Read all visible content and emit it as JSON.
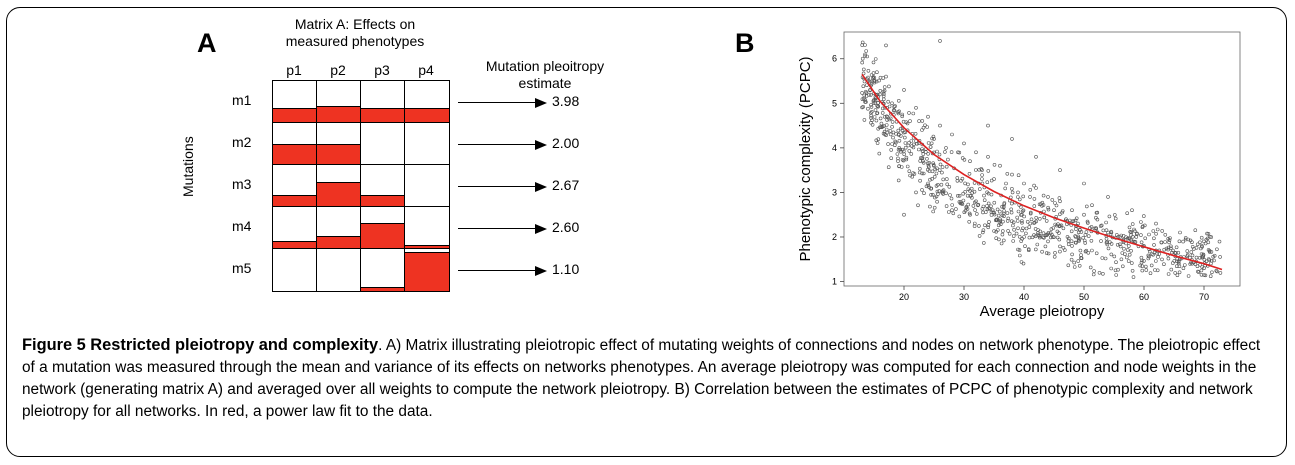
{
  "panel_a": {
    "letter": "A",
    "matrix_title_line1": "Matrix A: Effects on",
    "matrix_title_line2": "measured phenotypes",
    "estimate_title_line1": "Mutation pleoitropy",
    "estimate_title_line2": "estimate",
    "y_axis_label": "Mutations",
    "columns": [
      "p1",
      "p2",
      "p3",
      "p4"
    ],
    "rows": [
      {
        "label": "m1",
        "estimate": "3.98",
        "fills": [
          0.35,
          0.4,
          0.35,
          0.35
        ]
      },
      {
        "label": "m2",
        "estimate": "2.00",
        "fills": [
          0.5,
          0.5,
          0.0,
          0.0
        ]
      },
      {
        "label": "m3",
        "estimate": "2.67",
        "fills": [
          0.28,
          0.58,
          0.28,
          0.0
        ]
      },
      {
        "label": "m4",
        "estimate": "2.60",
        "fills": [
          0.18,
          0.3,
          0.62,
          0.08
        ]
      },
      {
        "label": "m5",
        "estimate": "1.10",
        "fills": [
          0.0,
          0.0,
          0.08,
          0.93
        ]
      }
    ],
    "fill_color": "#ee3322"
  },
  "panel_b": {
    "letter": "B"
  },
  "chart_data": {
    "type": "scatter",
    "title": "",
    "xlabel": "Average pleiotropy",
    "ylabel": "Phenotypic complexity (PCPC)",
    "xlim": [
      10,
      76
    ],
    "ylim": [
      0.9,
      6.6
    ],
    "x_ticks": [
      20,
      30,
      40,
      50,
      60,
      70
    ],
    "y_ticks": [
      1,
      2,
      3,
      4,
      5,
      6
    ],
    "grid": false,
    "series": [
      {
        "type": "scatter",
        "marker": "open-circle",
        "color": "#555555",
        "points": [
          [
            15,
            5.5
          ],
          [
            16,
            5.2
          ],
          [
            17,
            5.6
          ],
          [
            18,
            5.0
          ],
          [
            19,
            4.8
          ],
          [
            20,
            5.3
          ],
          [
            21,
            4.6
          ],
          [
            22,
            4.9
          ],
          [
            23,
            4.4
          ],
          [
            24,
            4.7
          ],
          [
            25,
            4.2
          ],
          [
            26,
            4.5
          ],
          [
            27,
            4.0
          ],
          [
            28,
            4.3
          ],
          [
            29,
            3.9
          ],
          [
            30,
            4.1
          ],
          [
            31,
            3.7
          ],
          [
            32,
            3.9
          ],
          [
            33,
            3.5
          ],
          [
            34,
            3.8
          ],
          [
            35,
            3.3
          ],
          [
            36,
            3.6
          ],
          [
            37,
            3.2
          ],
          [
            38,
            3.4
          ],
          [
            39,
            3.0
          ],
          [
            40,
            3.2
          ],
          [
            41,
            2.9
          ],
          [
            42,
            3.1
          ],
          [
            43,
            2.7
          ],
          [
            44,
            2.9
          ],
          [
            45,
            2.6
          ],
          [
            46,
            2.8
          ],
          [
            47,
            2.4
          ],
          [
            48,
            2.6
          ],
          [
            49,
            2.3
          ],
          [
            50,
            2.5
          ],
          [
            52,
            2.2
          ],
          [
            54,
            2.1
          ],
          [
            56,
            2.0
          ],
          [
            58,
            1.9
          ],
          [
            60,
            1.8
          ],
          [
            62,
            1.7
          ],
          [
            64,
            1.6
          ],
          [
            66,
            1.5
          ],
          [
            68,
            1.4
          ],
          [
            70,
            1.3
          ],
          [
            17,
            6.3
          ],
          [
            26,
            6.4
          ],
          [
            20,
            2.5
          ],
          [
            22,
            3.0
          ],
          [
            24,
            3.2
          ],
          [
            28,
            2.6
          ],
          [
            32,
            2.8
          ],
          [
            36,
            2.4
          ],
          [
            40,
            2.0
          ],
          [
            44,
            1.9
          ],
          [
            48,
            1.8
          ],
          [
            34,
            4.5
          ],
          [
            38,
            4.2
          ],
          [
            42,
            3.8
          ],
          [
            46,
            3.5
          ],
          [
            50,
            3.2
          ],
          [
            54,
            2.9
          ],
          [
            58,
            2.6
          ],
          [
            62,
            2.3
          ],
          [
            66,
            2.1
          ],
          [
            70,
            1.9
          ]
        ]
      },
      {
        "type": "line",
        "name": "",
        "color": "#dd2222",
        "points": [
          [
            13,
            5.65
          ],
          [
            16,
            5.05
          ],
          [
            20,
            4.45
          ],
          [
            25,
            3.85
          ],
          [
            30,
            3.4
          ],
          [
            35,
            3.02
          ],
          [
            40,
            2.7
          ],
          [
            45,
            2.43
          ],
          [
            50,
            2.2
          ],
          [
            55,
            1.98
          ],
          [
            60,
            1.78
          ],
          [
            65,
            1.58
          ],
          [
            70,
            1.4
          ],
          [
            73,
            1.27
          ]
        ]
      }
    ]
  },
  "caption": {
    "bold_part": "Figure 5 Restricted pleiotropy and complexity",
    "text": ". A) Matrix illustrating pleiotropic effect of mutating weights of connections and nodes on network phenotype. The pleiotropic effect of a mutation was measured through the mean and variance of its effects on networks phenotypes. An average pleiotropy was computed for each connection and node weights in the network (generating matrix A) and averaged over all weights to compute the network pleiotropy. B) Correlation between the estimates of PCPC of phenotypic complexity and network pleiotropy for all networks. In red, a power law fit to the data."
  }
}
